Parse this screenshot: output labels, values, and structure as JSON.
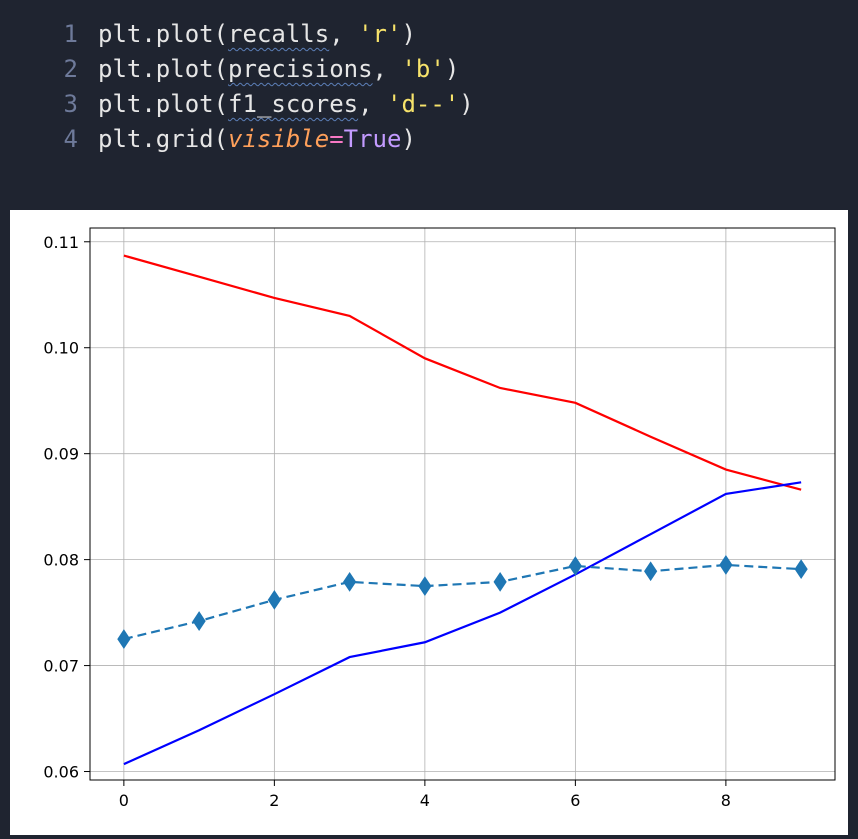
{
  "editor": {
    "lines": [
      {
        "number": "1",
        "tokens": [
          {
            "text": "plt.plot(",
            "class": "tok-default"
          },
          {
            "text": "recalls",
            "class": "tok-default squiggle"
          },
          {
            "text": ", ",
            "class": "tok-default"
          },
          {
            "text": "'r'",
            "class": "tok-str"
          },
          {
            "text": ")",
            "class": "tok-default"
          }
        ]
      },
      {
        "number": "2",
        "tokens": [
          {
            "text": "plt.plot(",
            "class": "tok-default"
          },
          {
            "text": "precisions",
            "class": "tok-default squiggle"
          },
          {
            "text": ", ",
            "class": "tok-default"
          },
          {
            "text": "'b'",
            "class": "tok-str"
          },
          {
            "text": ")",
            "class": "tok-default"
          }
        ]
      },
      {
        "number": "3",
        "tokens": [
          {
            "text": "plt.plot(",
            "class": "tok-default"
          },
          {
            "text": "f1_scores",
            "class": "tok-default squiggle"
          },
          {
            "text": ", ",
            "class": "tok-default"
          },
          {
            "text": "'d--'",
            "class": "tok-str"
          },
          {
            "text": ")",
            "class": "tok-default"
          }
        ]
      },
      {
        "number": "4",
        "tokens": [
          {
            "text": "plt.grid(",
            "class": "tok-default"
          },
          {
            "text": "visible",
            "class": "tok-kw"
          },
          {
            "text": "=",
            "class": "tok-op"
          },
          {
            "text": "True",
            "class": "tok-const"
          },
          {
            "text": ")",
            "class": "tok-default"
          }
        ]
      }
    ]
  },
  "chart_data": {
    "type": "line",
    "x": [
      0,
      1,
      2,
      3,
      4,
      5,
      6,
      7,
      8,
      9
    ],
    "xlim": [
      -0.45,
      9.45
    ],
    "ylim": [
      0.0592,
      0.1113
    ],
    "xticks": [
      0,
      2,
      4,
      6,
      8
    ],
    "xtick_labels": [
      "0",
      "2",
      "4",
      "6",
      "8"
    ],
    "yticks": [
      0.06,
      0.07,
      0.08,
      0.09,
      0.1,
      0.11
    ],
    "ytick_labels": [
      "0.06",
      "0.07",
      "0.08",
      "0.09",
      "0.10",
      "0.11"
    ],
    "grid": true,
    "series": [
      {
        "color": "#ff0000",
        "style": "solid",
        "marker": "none",
        "values": [
          0.1087,
          0.1067,
          0.1047,
          0.103,
          0.099,
          0.0962,
          0.0948,
          0.0916,
          0.0885,
          0.0866
        ]
      },
      {
        "color": "#0000ff",
        "style": "solid",
        "marker": "none",
        "values": [
          0.0607,
          0.0639,
          0.0673,
          0.0708,
          0.0722,
          0.075,
          0.0786,
          0.0824,
          0.0862,
          0.0873
        ]
      },
      {
        "color": "#1f77b4",
        "style": "dashed",
        "marker": "thin-diamond",
        "values": [
          0.0725,
          0.0742,
          0.0762,
          0.0779,
          0.0775,
          0.0779,
          0.0794,
          0.0789,
          0.0795,
          0.0791
        ]
      }
    ]
  }
}
